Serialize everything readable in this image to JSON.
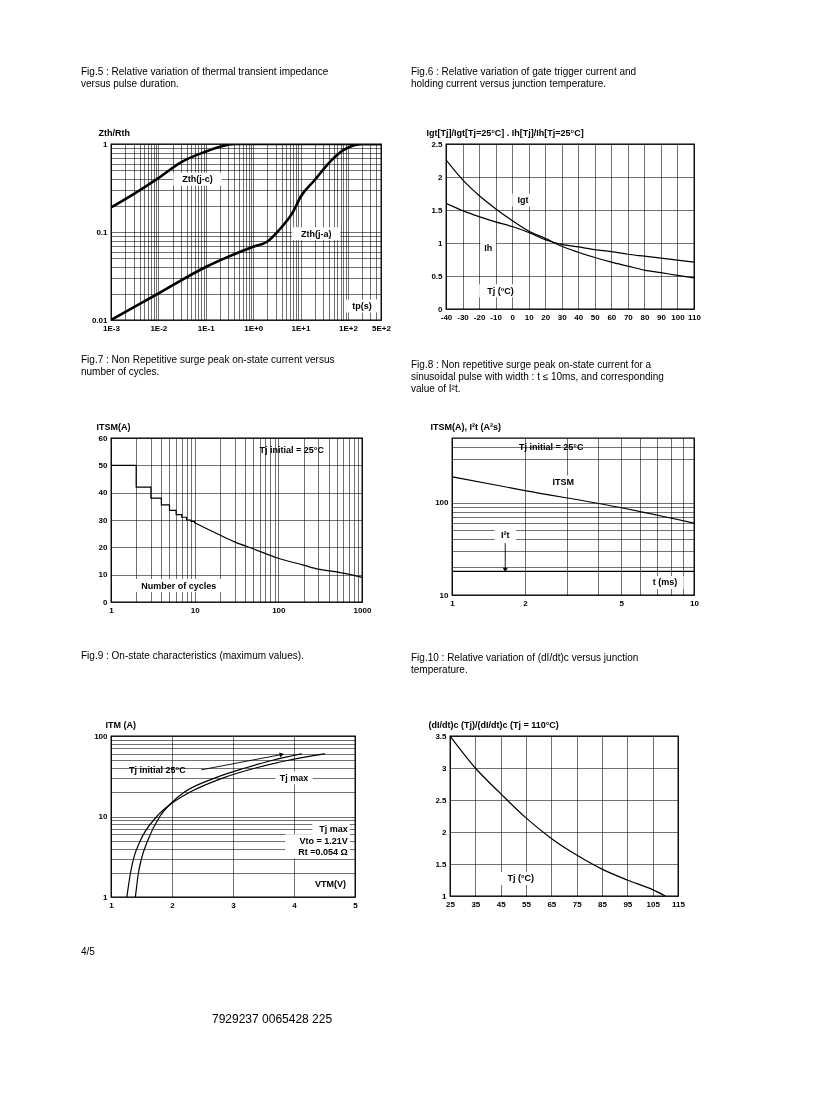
{
  "chart_data": [
    {
      "type": "line",
      "title": "Fig.5 : Relative variation of thermal transient impedance versus pulse duration.",
      "xlabel": "tp(s)",
      "ylabel": "Zth/Rth",
      "log": "xy",
      "grid": true,
      "xlim": [
        0.001,
        500
      ],
      "ylim": [
        0.01,
        1
      ],
      "xticks": [
        {
          "value": 0.001,
          "label": "1E-3"
        },
        {
          "value": 0.002,
          "label": null
        },
        {
          "value": 0.003,
          "label": null
        },
        {
          "value": 0.004,
          "label": null
        },
        {
          "value": 0.005,
          "label": null
        },
        {
          "value": 0.006,
          "label": null
        },
        {
          "value": 0.007,
          "label": null
        },
        {
          "value": 0.008,
          "label": null
        },
        {
          "value": 0.009,
          "label": null
        },
        {
          "value": 0.01,
          "label": "1E-2"
        },
        {
          "value": 0.02,
          "label": null
        },
        {
          "value": 0.03,
          "label": null
        },
        {
          "value": 0.04,
          "label": null
        },
        {
          "value": 0.05,
          "label": null
        },
        {
          "value": 0.06,
          "label": null
        },
        {
          "value": 0.07,
          "label": null
        },
        {
          "value": 0.08,
          "label": null
        },
        {
          "value": 0.09,
          "label": null
        },
        {
          "value": 0.1,
          "label": "1E-1"
        },
        {
          "value": 0.2,
          "label": null
        },
        {
          "value": 0.3,
          "label": null
        },
        {
          "value": 0.4,
          "label": null
        },
        {
          "value": 0.5,
          "label": null
        },
        {
          "value": 0.6,
          "label": null
        },
        {
          "value": 0.7,
          "label": null
        },
        {
          "value": 0.8,
          "label": null
        },
        {
          "value": 0.9,
          "label": null
        },
        {
          "value": 1,
          "label": "1E+0"
        },
        {
          "value": 2,
          "label": null
        },
        {
          "value": 3,
          "label": null
        },
        {
          "value": 4,
          "label": null
        },
        {
          "value": 5,
          "label": null
        },
        {
          "value": 6,
          "label": null
        },
        {
          "value": 7,
          "label": null
        },
        {
          "value": 8,
          "label": null
        },
        {
          "value": 9,
          "label": null
        },
        {
          "value": 10,
          "label": "1E+1"
        },
        {
          "value": 20,
          "label": null
        },
        {
          "value": 30,
          "label": null
        },
        {
          "value": 40,
          "label": null
        },
        {
          "value": 50,
          "label": null
        },
        {
          "value": 60,
          "label": null
        },
        {
          "value": 70,
          "label": null
        },
        {
          "value": 80,
          "label": null
        },
        {
          "value": 90,
          "label": null
        },
        {
          "value": 100,
          "label": "1E+2"
        },
        {
          "value": 200,
          "label": null
        },
        {
          "value": 300,
          "label": null
        },
        {
          "value": 400,
          "label": null
        },
        {
          "value": 500,
          "label": "5E+2"
        }
      ],
      "yticks": [
        0.01,
        {
          "value": 0.02,
          "label": null
        },
        {
          "value": 0.03,
          "label": null
        },
        {
          "value": 0.04,
          "label": null
        },
        {
          "value": 0.05,
          "label": null
        },
        {
          "value": 0.06,
          "label": null
        },
        {
          "value": 0.07,
          "label": null
        },
        {
          "value": 0.08,
          "label": null
        },
        {
          "value": 0.09,
          "label": null
        },
        0.1,
        {
          "value": 0.2,
          "label": null
        },
        {
          "value": 0.3,
          "label": null
        },
        {
          "value": 0.4,
          "label": null
        },
        {
          "value": 0.5,
          "label": null
        },
        {
          "value": 0.6,
          "label": null
        },
        {
          "value": 0.7,
          "label": null
        },
        {
          "value": 0.8,
          "label": null
        },
        {
          "value": 0.9,
          "label": null
        },
        1
      ],
      "series": [
        {
          "name": "Zth(j-c)",
          "color": "#000000",
          "x": [
            0.001,
            0.003,
            0.01,
            0.03,
            0.1,
            0.2,
            0.4,
            500
          ],
          "values": [
            0.19,
            0.27,
            0.41,
            0.62,
            0.82,
            0.93,
            1,
            1
          ]
        },
        {
          "name": "Zth(j-a)",
          "color": "#000000",
          "x": [
            0.001,
            0.01,
            0.1,
            1,
            2,
            3.5,
            7,
            10,
            20,
            40,
            80,
            130,
            200,
            500
          ],
          "values": [
            0.01,
            0.02,
            0.04,
            0.068,
            0.078,
            0.105,
            0.17,
            0.25,
            0.39,
            0.61,
            0.85,
            0.96,
            1,
            1
          ]
        }
      ]
    },
    {
      "type": "line",
      "title": "Fig.6 : Relative variation of gate trigger current and holding current versus junction temperature.",
      "xlabel": "Tj (°C)",
      "ylabel": "Igt[Tj]/Igt[Tj=25°C] . Ih[Tj]/Ih[Tj=25°C]",
      "grid": true,
      "xlim": [
        -40,
        110
      ],
      "ylim": [
        0,
        2.5
      ],
      "xticks": [
        -40,
        -30,
        -20,
        -10,
        0,
        10,
        20,
        30,
        40,
        50,
        60,
        70,
        80,
        90,
        100,
        110
      ],
      "yticks": [
        0,
        0.5,
        1,
        1.5,
        2,
        2.5
      ],
      "x": [
        -40,
        -30,
        -20,
        -10,
        0,
        10,
        20,
        30,
        40,
        50,
        60,
        70,
        80,
        90,
        100,
        110
      ],
      "series": [
        {
          "name": "Igt",
          "color": "#000000",
          "values": [
            2.26,
            1.96,
            1.72,
            1.52,
            1.34,
            1.18,
            1.07,
            0.95,
            0.86,
            0.78,
            0.71,
            0.65,
            0.59,
            0.55,
            0.51,
            0.47
          ]
        },
        {
          "name": "Ih",
          "color": "#000000",
          "values": [
            1.6,
            1.49,
            1.4,
            1.32,
            1.25,
            1.16,
            1.05,
            0.98,
            0.94,
            0.9,
            0.87,
            0.83,
            0.8,
            0.77,
            0.74,
            0.71
          ]
        }
      ]
    },
    {
      "type": "line",
      "title": "Fig.7 : Non Repetitive surge peak on-state current versus number of cycles.",
      "xlabel": "Number of cycles",
      "ylabel": "ITSM(A)",
      "log": "x",
      "grid": true,
      "xlim": [
        1,
        1000
      ],
      "ylim": [
        0,
        60
      ],
      "xticks": [
        1,
        {
          "value": 2,
          "label": null
        },
        {
          "value": 3,
          "label": null
        },
        {
          "value": 4,
          "label": null
        },
        {
          "value": 5,
          "label": null
        },
        {
          "value": 6,
          "label": null
        },
        {
          "value": 7,
          "label": null
        },
        {
          "value": 8,
          "label": null
        },
        {
          "value": 9,
          "label": null
        },
        10,
        {
          "value": 20,
          "label": null
        },
        {
          "value": 30,
          "label": null
        },
        {
          "value": 40,
          "label": null
        },
        {
          "value": 50,
          "label": null
        },
        {
          "value": 60,
          "label": null
        },
        {
          "value": 70,
          "label": null
        },
        {
          "value": 80,
          "label": null
        },
        {
          "value": 90,
          "label": null
        },
        100,
        {
          "value": 200,
          "label": null
        },
        {
          "value": 300,
          "label": null
        },
        {
          "value": 400,
          "label": null
        },
        {
          "value": 500,
          "label": null
        },
        {
          "value": 600,
          "label": null
        },
        {
          "value": 700,
          "label": null
        },
        {
          "value": 800,
          "label": null
        },
        {
          "value": 900,
          "label": null
        },
        1000
      ],
      "yticks": [
        0,
        10,
        20,
        30,
        40,
        50,
        60
      ],
      "annotations": [
        "Tj initial = 25°C"
      ],
      "series": [
        {
          "type": "step",
          "color": "#000000",
          "x": [
            1,
            2,
            3,
            4,
            5,
            6,
            7,
            8,
            9,
            10
          ],
          "values": [
            50,
            42,
            38,
            35.5,
            33.5,
            32,
            31,
            30,
            29.5,
            29
          ]
        },
        {
          "type": "line",
          "color": "#000000",
          "x": [
            10,
            20,
            30,
            50,
            100,
            200,
            300,
            500,
            1000
          ],
          "values": [
            29,
            24.5,
            22,
            19.5,
            16,
            13.5,
            12,
            11,
            9
          ]
        }
      ]
    },
    {
      "type": "line",
      "title": "Fig.8 : Non repetitive surge peak on-state current for a sinusoidal pulse with width : t ≤ 10ms, and corresponding value of I²t.",
      "xlabel": "t (ms)",
      "ylabel": "ITSM(A), I²t (A²s)",
      "log": "xy",
      "grid": true,
      "xlim": [
        1,
        10
      ],
      "ylim": [
        10,
        500
      ],
      "xticks": [
        1,
        2,
        {
          "value": 3,
          "label": null
        },
        {
          "value": 4,
          "label": null
        },
        5,
        {
          "value": 6,
          "label": null
        },
        {
          "value": 7,
          "label": null
        },
        {
          "value": 8,
          "label": null
        },
        {
          "value": 9,
          "label": null
        },
        10
      ],
      "yticks": [
        10,
        {
          "value": 20,
          "label": null
        },
        {
          "value": 30,
          "label": null
        },
        {
          "value": 40,
          "label": null
        },
        {
          "value": 50,
          "label": null
        },
        {
          "value": 60,
          "label": null
        },
        {
          "value": 70,
          "label": null
        },
        {
          "value": 80,
          "label": null
        },
        {
          "value": 90,
          "label": null
        },
        100,
        {
          "value": 300,
          "label": null
        },
        {
          "value": 400,
          "label": null
        }
      ],
      "annotations": [
        "Tj initial = 25°C"
      ],
      "series": [
        {
          "name": "ITSM",
          "color": "#000000",
          "x": [
            1,
            2,
            5,
            10
          ],
          "values": [
            190,
            135,
            88,
            60
          ]
        },
        {
          "name": "I²t",
          "color": "#000000",
          "x": [
            1,
            10
          ],
          "values": [
            18,
            18
          ]
        }
      ]
    },
    {
      "type": "line",
      "title": "Fig.9 : On-state characteristics (maximum values).",
      "xlabel": "VTM(V)",
      "ylabel": "ITM (A)",
      "log": "y",
      "grid": true,
      "xlim": [
        1,
        5
      ],
      "ylim": [
        1,
        100
      ],
      "xticks": [
        1,
        2,
        3,
        4,
        5
      ],
      "yticks": [
        1,
        {
          "value": 2,
          "label": null
        },
        {
          "value": 3,
          "label": null
        },
        {
          "value": 4,
          "label": null
        },
        {
          "value": 5,
          "label": null
        },
        {
          "value": 6,
          "label": null
        },
        {
          "value": 7,
          "label": null
        },
        {
          "value": 8,
          "label": null
        },
        {
          "value": 9,
          "label": null
        },
        10,
        {
          "value": 20,
          "label": null
        },
        {
          "value": 30,
          "label": null
        },
        {
          "value": 40,
          "label": null
        },
        {
          "value": 50,
          "label": null
        },
        {
          "value": 60,
          "label": null
        },
        {
          "value": 70,
          "label": null
        },
        {
          "value": 80,
          "label": null
        },
        {
          "value": 90,
          "label": null
        },
        100
      ],
      "annotations": [
        "Tj max",
        "Vto = 1.21V",
        "Rt =0.054 Ω",
        "4/5",
        "7929237 0065428 225"
      ],
      "series": [
        {
          "name": "Tj initial 25°C",
          "color": "#000000",
          "x": [
            1.4,
            1.45,
            1.5,
            1.6,
            1.8,
            2.0,
            2.2,
            2.7,
            3.2,
            3.65,
            4.12
          ],
          "values": [
            1,
            2,
            3,
            5,
            10,
            15,
            20,
            30,
            40,
            50,
            60
          ]
        },
        {
          "name": "Tj max",
          "color": "#000000",
          "x": [
            1.26,
            1.32,
            1.37,
            1.48,
            1.75,
            2.02,
            2.29,
            2.83,
            3.37,
            3.91,
            4.5
          ],
          "values": [
            1,
            2,
            3,
            5,
            10,
            15,
            20,
            30,
            40,
            50,
            60
          ]
        }
      ]
    },
    {
      "type": "line",
      "title": "Fig.10 : Relative variation of (dI/dt)c versus junction temperature.",
      "xlabel": "Tj (°C)",
      "ylabel": "(dI/dt)c (Tj)/(dI/dt)c (Tj = 110°C)",
      "grid": true,
      "xlim": [
        25,
        115
      ],
      "ylim": [
        1,
        3.5
      ],
      "xticks": [
        25,
        35,
        45,
        55,
        65,
        75,
        85,
        95,
        105,
        115
      ],
      "yticks": [
        1,
        1.5,
        2,
        2.5,
        3,
        3.5
      ],
      "x": [
        25,
        35,
        45,
        55,
        65,
        75,
        85,
        95,
        105,
        110
      ],
      "values": [
        3.5,
        3.0,
        2.6,
        2.22,
        1.9,
        1.64,
        1.42,
        1.25,
        1.1,
        1.0
      ],
      "color": "#000000"
    }
  ]
}
